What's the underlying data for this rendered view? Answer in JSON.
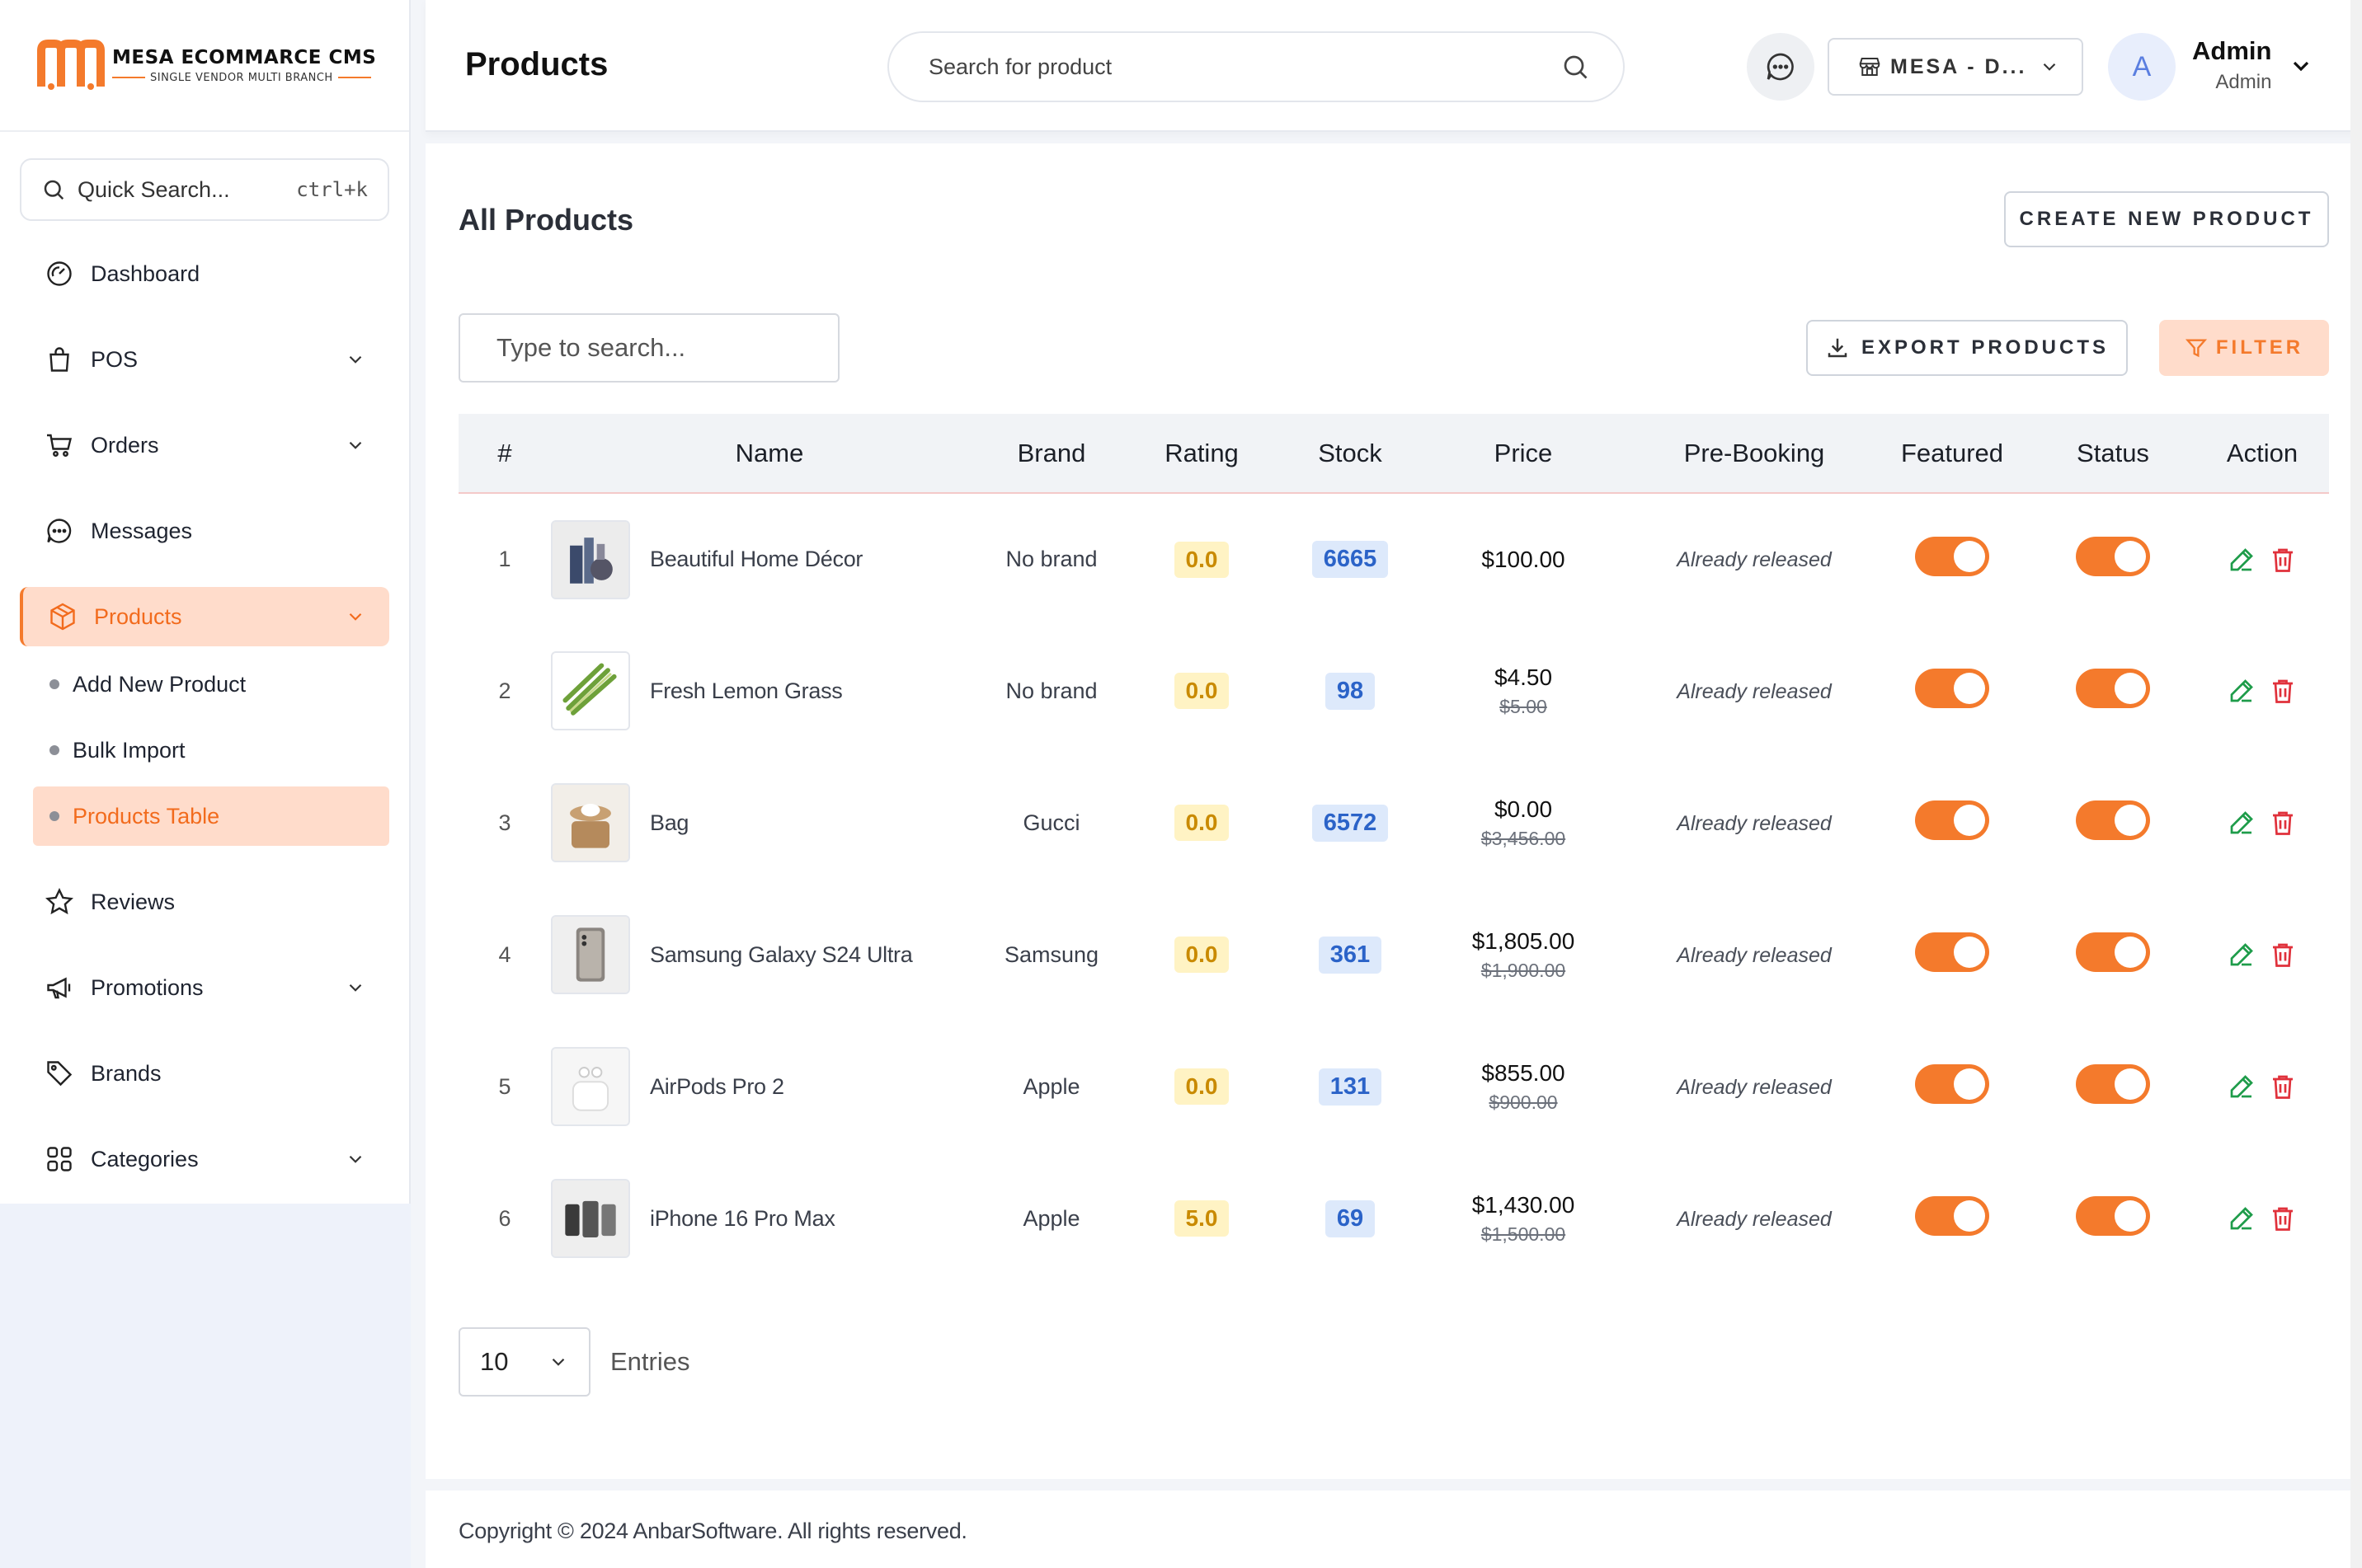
{
  "brand": {
    "title": "MESA ECOMMARCE CMS",
    "subtitle": "SINGLE VENDOR MULTI BRANCH",
    "accent": "#f47a2c"
  },
  "sidebar": {
    "quick_search": {
      "label": "Quick Search...",
      "shortcut": "ctrl+k"
    },
    "items": [
      {
        "label": "Dashboard",
        "icon": "gauge-icon"
      },
      {
        "label": "POS",
        "icon": "shopping-bag-icon"
      },
      {
        "label": "Orders",
        "icon": "cart-icon"
      },
      {
        "label": "Messages",
        "icon": "chat-icon"
      },
      {
        "label": "Products",
        "icon": "box-icon",
        "active": true
      },
      {
        "label": "Reviews",
        "icon": "star-icon"
      },
      {
        "label": "Promotions",
        "icon": "megaphone-icon"
      },
      {
        "label": "Brands",
        "icon": "tag-icon"
      },
      {
        "label": "Categories",
        "icon": "grid-icon"
      }
    ],
    "products_sub": [
      {
        "label": "Add New Product"
      },
      {
        "label": "Bulk Import"
      },
      {
        "label": "Products Table",
        "active": true
      }
    ]
  },
  "header": {
    "title": "Products",
    "search_placeholder": "Search for product",
    "branch": "MESA - D...",
    "avatar_letter": "A",
    "user_name": "Admin",
    "user_role": "Admin"
  },
  "main": {
    "section_title": "All Products",
    "create_label": "CREATE NEW PRODUCT",
    "search_placeholder": "Type to search...",
    "export_label": "EXPORT PRODUCTS",
    "filter_label": "FILTER",
    "columns": [
      "#",
      "Name",
      "Brand",
      "Rating",
      "Stock",
      "Price",
      "Pre-Booking",
      "Featured",
      "Status",
      "Action"
    ],
    "rows": [
      {
        "num": "1",
        "name": "Beautiful Home Décor",
        "brand": "No brand",
        "rating": "0.0",
        "stock": "6665",
        "price": "$100.00",
        "old_price": "",
        "prebooking": "Already released",
        "featured": true,
        "status": true
      },
      {
        "num": "2",
        "name": "Fresh Lemon Grass",
        "brand": "No brand",
        "rating": "0.0",
        "stock": "98",
        "price": "$4.50",
        "old_price": "$5.00",
        "prebooking": "Already released",
        "featured": true,
        "status": true
      },
      {
        "num": "3",
        "name": "Bag",
        "brand": "Gucci",
        "rating": "0.0",
        "stock": "6572",
        "price": "$0.00",
        "old_price": "$3,456.00",
        "prebooking": "Already released",
        "featured": true,
        "status": true
      },
      {
        "num": "4",
        "name": "Samsung Galaxy S24 Ultra",
        "brand": "Samsung",
        "rating": "0.0",
        "stock": "361",
        "price": "$1,805.00",
        "old_price": "$1,900.00",
        "prebooking": "Already released",
        "featured": true,
        "status": true
      },
      {
        "num": "5",
        "name": "AirPods Pro 2",
        "brand": "Apple",
        "rating": "0.0",
        "stock": "131",
        "price": "$855.00",
        "old_price": "$900.00",
        "prebooking": "Already released",
        "featured": true,
        "status": true
      },
      {
        "num": "6",
        "name": "iPhone 16 Pro Max",
        "brand": "Apple",
        "rating": "5.0",
        "stock": "69",
        "price": "$1,430.00",
        "old_price": "$1,500.00",
        "prebooking": "Already released",
        "featured": true,
        "status": true
      }
    ],
    "entries_value": "10",
    "entries_label": "Entries"
  },
  "footer": {
    "text": "Copyright © 2024 AnbarSoftware. All rights reserved."
  }
}
